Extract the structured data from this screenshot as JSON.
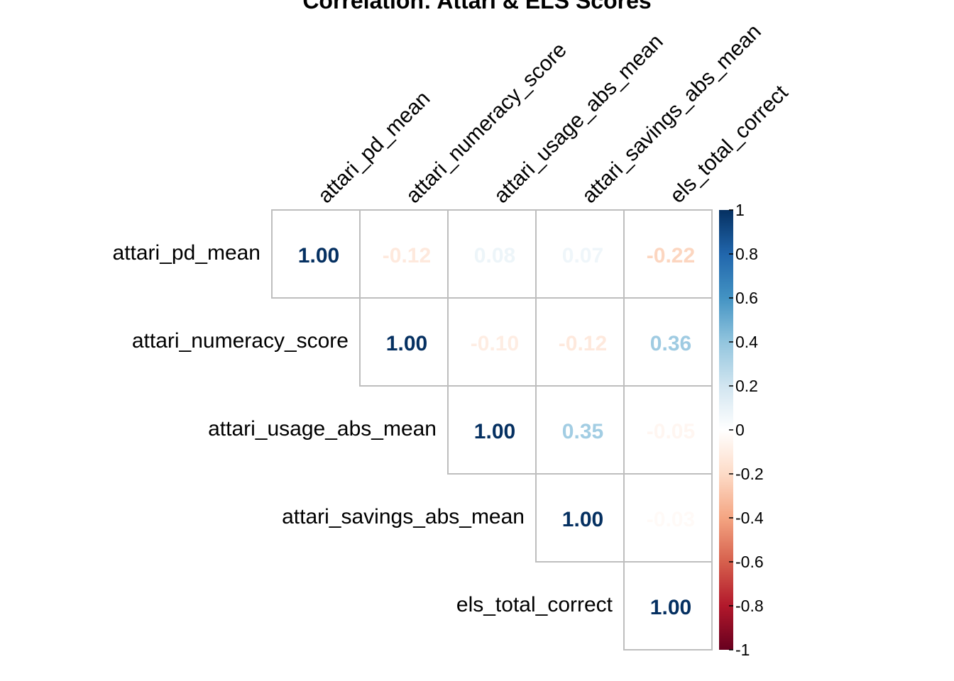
{
  "chart_data": {
    "type": "heatmap",
    "title": "Correlation: Attari & ELS Scores",
    "variables": [
      "attari_pd_mean",
      "attari_numeracy_score",
      "attari_usage_abs_mean",
      "attari_savings_abs_mean",
      "els_total_correct"
    ],
    "layout": "upper-triangle",
    "values": [
      [
        1.0,
        -0.12,
        0.08,
        0.07,
        -0.22
      ],
      [
        null,
        1.0,
        -0.1,
        -0.12,
        0.36
      ],
      [
        null,
        null,
        1.0,
        0.35,
        -0.05
      ],
      [
        null,
        null,
        null,
        1.0,
        -0.03
      ],
      [
        null,
        null,
        null,
        null,
        1.0
      ]
    ],
    "value_labels": [
      [
        "1.00",
        "-0.12",
        "0.08",
        "0.07",
        "-0.22"
      ],
      [
        null,
        "1.00",
        "-0.10",
        "-0.12",
        "0.36"
      ],
      [
        null,
        null,
        "1.00",
        "0.35",
        "-0.05"
      ],
      [
        null,
        null,
        null,
        "1.00",
        "-0.03"
      ],
      [
        null,
        null,
        null,
        null,
        "1.00"
      ]
    ],
    "colorbar": {
      "range": [
        -1,
        1
      ],
      "tick_values": [
        1,
        0.8,
        0.6,
        0.4,
        0.2,
        0,
        -0.2,
        -0.4,
        -0.6,
        -0.8,
        -1
      ],
      "tick_labels": [
        "1",
        "0.8",
        "0.6",
        "0.4",
        "0.2",
        "0",
        "-0.2",
        "-0.4",
        "-0.6",
        "-0.8",
        "-1"
      ],
      "colors": {
        "-1": "#67001f",
        "-0.8": "#b2182b",
        "-0.6": "#d6604d",
        "-0.4": "#f4a582",
        "-0.2": "#fddbc7",
        "0": "#ffffff",
        "0.2": "#d1e5f0",
        "0.4": "#92c5de",
        "0.6": "#4393c3",
        "0.8": "#2166ac",
        "1": "#053061"
      }
    },
    "grid_color": "#bebebe"
  }
}
